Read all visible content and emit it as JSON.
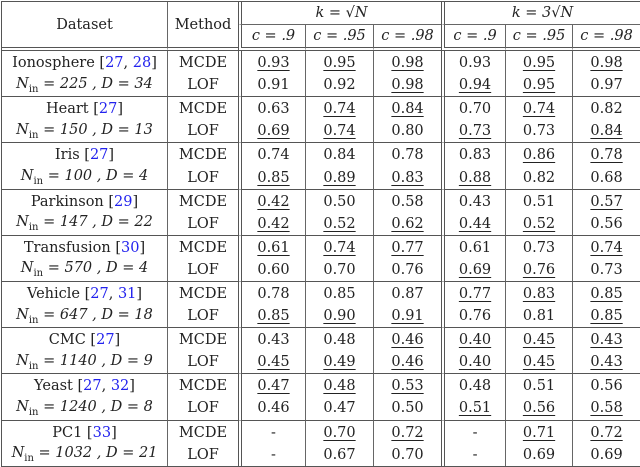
{
  "table": {
    "headers": {
      "dataset": "Dataset",
      "method": "Method",
      "group1": "k = √N",
      "group2": "k = 3√N",
      "c_values": [
        "c = .9",
        "c = .95",
        "c = .98",
        "c = .9",
        "c = .95",
        "c = .98"
      ]
    },
    "rows": [
      {
        "name": "Ionosphere",
        "cite_open": " [",
        "cites": [
          "27",
          "28"
        ],
        "cite_close": "]",
        "params": "N_in = 225 , D = 34",
        "methods": [
          {
            "method": "MCDE",
            "values": [
              "0.93",
              "0.95",
              "0.98",
              "0.93",
              "0.95",
              "0.98"
            ],
            "underlined": [
              true,
              true,
              true,
              false,
              true,
              true
            ]
          },
          {
            "method": "LOF",
            "values": [
              "0.91",
              "0.92",
              "0.98",
              "0.94",
              "0.95",
              "0.97"
            ],
            "underlined": [
              false,
              false,
              true,
              true,
              true,
              false
            ]
          }
        ]
      },
      {
        "name": "Heart",
        "cite_open": " [",
        "cites": [
          "27"
        ],
        "cite_close": "]",
        "params": "N_in = 150 , D = 13",
        "methods": [
          {
            "method": "MCDE",
            "values": [
              "0.63",
              "0.74",
              "0.84",
              "0.70",
              "0.74",
              "0.82"
            ],
            "underlined": [
              false,
              true,
              true,
              false,
              true,
              false
            ]
          },
          {
            "method": "LOF",
            "values": [
              "0.69",
              "0.74",
              "0.80",
              "0.73",
              "0.73",
              "0.84"
            ],
            "underlined": [
              true,
              true,
              false,
              true,
              false,
              true
            ]
          }
        ]
      },
      {
        "name": "Iris",
        "cite_open": " [",
        "cites": [
          "27"
        ],
        "cite_close": "]",
        "params": "N_in = 100 , D = 4",
        "methods": [
          {
            "method": "MCDE",
            "values": [
              "0.74",
              "0.84",
              "0.78",
              "0.83",
              "0.86",
              "0.78"
            ],
            "underlined": [
              false,
              false,
              false,
              false,
              true,
              true
            ]
          },
          {
            "method": "LOF",
            "values": [
              "0.85",
              "0.89",
              "0.83",
              "0.88",
              "0.82",
              "0.68"
            ],
            "underlined": [
              true,
              true,
              true,
              true,
              false,
              false
            ]
          }
        ]
      },
      {
        "name": "Parkinson",
        "cite_open": " [",
        "cites": [
          "29"
        ],
        "cite_close": "]",
        "params": "N_in = 147 , D = 22",
        "methods": [
          {
            "method": "MCDE",
            "values": [
              "0.42",
              "0.50",
              "0.58",
              "0.43",
              "0.51",
              "0.57"
            ],
            "underlined": [
              true,
              false,
              false,
              false,
              false,
              true
            ]
          },
          {
            "method": "LOF",
            "values": [
              "0.42",
              "0.52",
              "0.62",
              "0.44",
              "0.52",
              "0.56"
            ],
            "underlined": [
              true,
              true,
              true,
              true,
              true,
              false
            ]
          }
        ]
      },
      {
        "name": "Transfusion",
        "cite_open": " [",
        "cites": [
          "30"
        ],
        "cite_close": "]",
        "params": "N_in = 570 , D = 4",
        "methods": [
          {
            "method": "MCDE",
            "values": [
              "0.61",
              "0.74",
              "0.77",
              "0.61",
              "0.73",
              "0.74"
            ],
            "underlined": [
              true,
              true,
              true,
              false,
              false,
              true
            ]
          },
          {
            "method": "LOF",
            "values": [
              "0.60",
              "0.70",
              "0.76",
              "0.69",
              "0.76",
              "0.73"
            ],
            "underlined": [
              false,
              false,
              false,
              true,
              true,
              false
            ]
          }
        ]
      },
      {
        "name": "Vehicle",
        "cite_open": " [",
        "cites": [
          "27",
          "31"
        ],
        "cite_close": "]",
        "params": "N_in = 647 , D = 18",
        "methods": [
          {
            "method": "MCDE",
            "values": [
              "0.78",
              "0.85",
              "0.87",
              "0.77",
              "0.83",
              "0.85"
            ],
            "underlined": [
              false,
              false,
              false,
              true,
              true,
              true
            ]
          },
          {
            "method": "LOF",
            "values": [
              "0.85",
              "0.90",
              "0.91",
              "0.76",
              "0.81",
              "0.85"
            ],
            "underlined": [
              true,
              true,
              true,
              false,
              false,
              true
            ]
          }
        ]
      },
      {
        "name": "CMC",
        "cite_open": " [",
        "cites": [
          "27"
        ],
        "cite_close": "]",
        "params": "N_in = 1140 , D = 9",
        "methods": [
          {
            "method": "MCDE",
            "values": [
              "0.43",
              "0.48",
              "0.46",
              "0.40",
              "0.45",
              "0.43"
            ],
            "underlined": [
              false,
              false,
              true,
              true,
              true,
              true
            ]
          },
          {
            "method": "LOF",
            "values": [
              "0.45",
              "0.49",
              "0.46",
              "0.40",
              "0.45",
              "0.43"
            ],
            "underlined": [
              true,
              true,
              true,
              true,
              true,
              true
            ]
          }
        ]
      },
      {
        "name": "Yeast",
        "cite_open": " [",
        "cites": [
          "27",
          "32"
        ],
        "cite_close": "]",
        "params": "N_in = 1240 , D = 8",
        "methods": [
          {
            "method": "MCDE",
            "values": [
              "0.47",
              "0.48",
              "0.53",
              "0.48",
              "0.51",
              "0.56"
            ],
            "underlined": [
              true,
              true,
              true,
              false,
              false,
              false
            ]
          },
          {
            "method": "LOF",
            "values": [
              "0.46",
              "0.47",
              "0.50",
              "0.51",
              "0.56",
              "0.58"
            ],
            "underlined": [
              false,
              false,
              false,
              true,
              true,
              true
            ]
          }
        ]
      },
      {
        "name": "PC1",
        "cite_open": " [",
        "cites": [
          "33"
        ],
        "cite_close": "]",
        "params": "N_in = 1032 , D = 21",
        "methods": [
          {
            "method": "MCDE",
            "values": [
              "-",
              "0.70",
              "0.72",
              "-",
              "0.71",
              "0.72"
            ],
            "underlined": [
              false,
              true,
              true,
              false,
              true,
              true
            ]
          },
          {
            "method": "LOF",
            "values": [
              "-",
              "0.67",
              "0.70",
              "-",
              "0.69",
              "0.69"
            ],
            "underlined": [
              false,
              false,
              false,
              false,
              false,
              false
            ]
          }
        ]
      }
    ]
  },
  "colors": {
    "citation": "#2222ee",
    "rule": "#555555",
    "text": "#222222"
  }
}
